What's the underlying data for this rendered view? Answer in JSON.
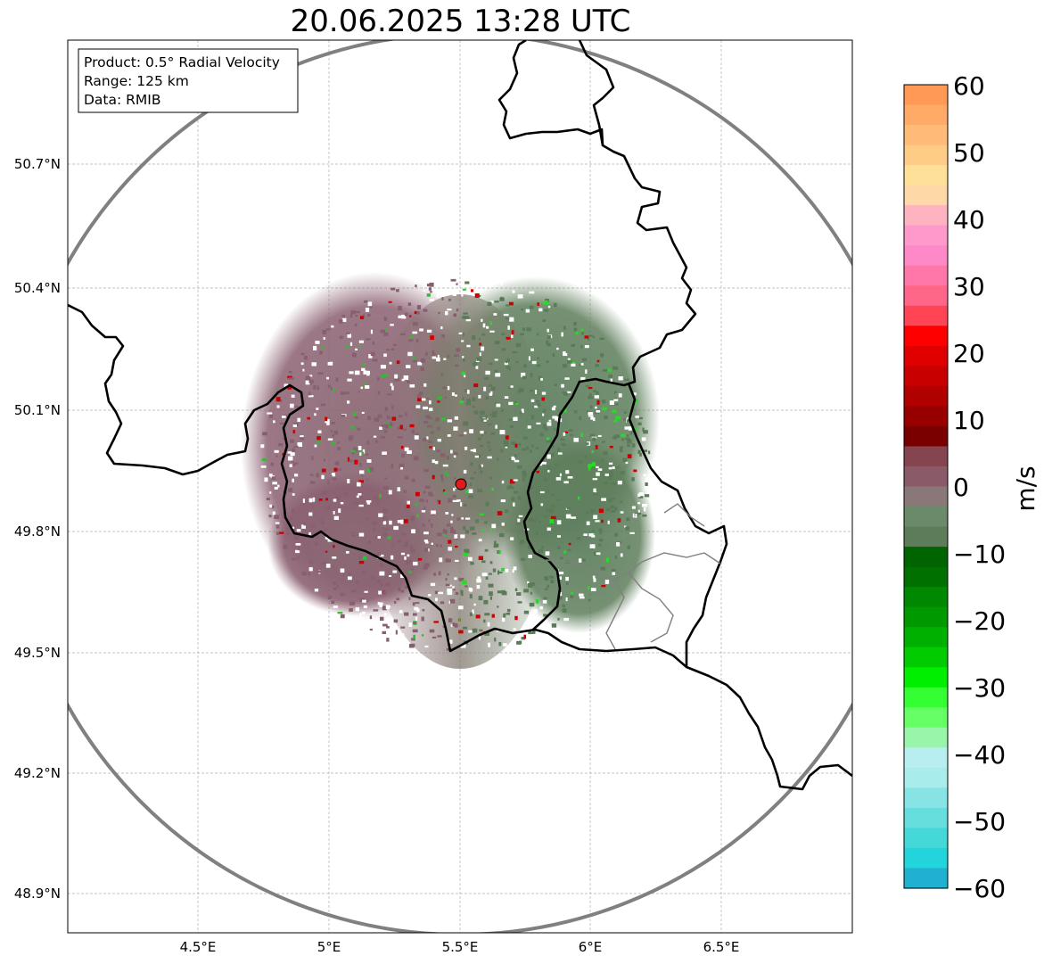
{
  "title": "20.06.2025 13:28 UTC",
  "info_box": {
    "product": "Product: 0.5° Radial Velocity",
    "range": "Range: 125 km",
    "data": "Data: RMIB"
  },
  "lat_ticks": [
    "50.7°N",
    "50.4°N",
    "50.1°N",
    "49.8°N",
    "49.5°N",
    "49.2°N",
    "48.9°N"
  ],
  "lon_ticks": [
    "4.5°E",
    "5°E",
    "5.5°E",
    "6°E",
    "6.5°E"
  ],
  "colorbar": {
    "label": "m/s",
    "ticks": [
      "60",
      "50",
      "40",
      "30",
      "20",
      "10",
      "0",
      "−10",
      "−20",
      "−30",
      "−40",
      "−50",
      "−60"
    ],
    "min": -60,
    "max": 60
  },
  "colors": {
    "approaching_green": "#5d7d5a",
    "receding_mauve": "#8a5f70",
    "range_ring": "#808080",
    "radar_site": "#e31a1c"
  }
}
